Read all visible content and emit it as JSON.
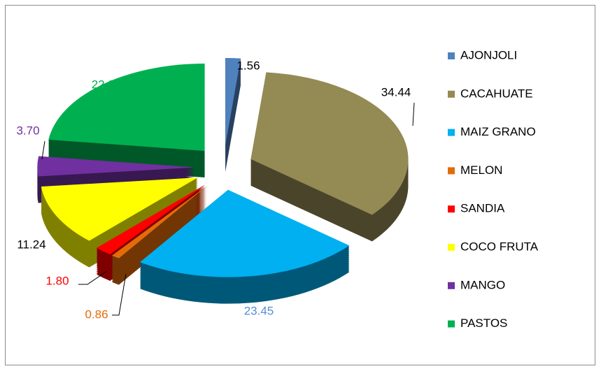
{
  "chart_data": {
    "type": "pie",
    "style": "3d-exploded",
    "categories": [
      "AJONJOLI",
      "CACAHUATE",
      "MAIZ GRANO",
      "MELON",
      "SANDIA",
      "COCO FRUTA",
      "MANGO",
      "PASTOS"
    ],
    "values": [
      1.56,
      34.44,
      23.45,
      0.86,
      1.8,
      11.24,
      3.7,
      22.95
    ],
    "value_labels": [
      "1.56",
      "34.44",
      "23.45",
      "0.86",
      "1.80",
      "11.24",
      "3.70",
      "22.95"
    ],
    "colors": [
      "#4f81bd",
      "#948a54",
      "#00b0f0",
      "#e36c09",
      "#ff0000",
      "#ffff00",
      "#7030a0",
      "#00b050"
    ],
    "legend": "right"
  }
}
